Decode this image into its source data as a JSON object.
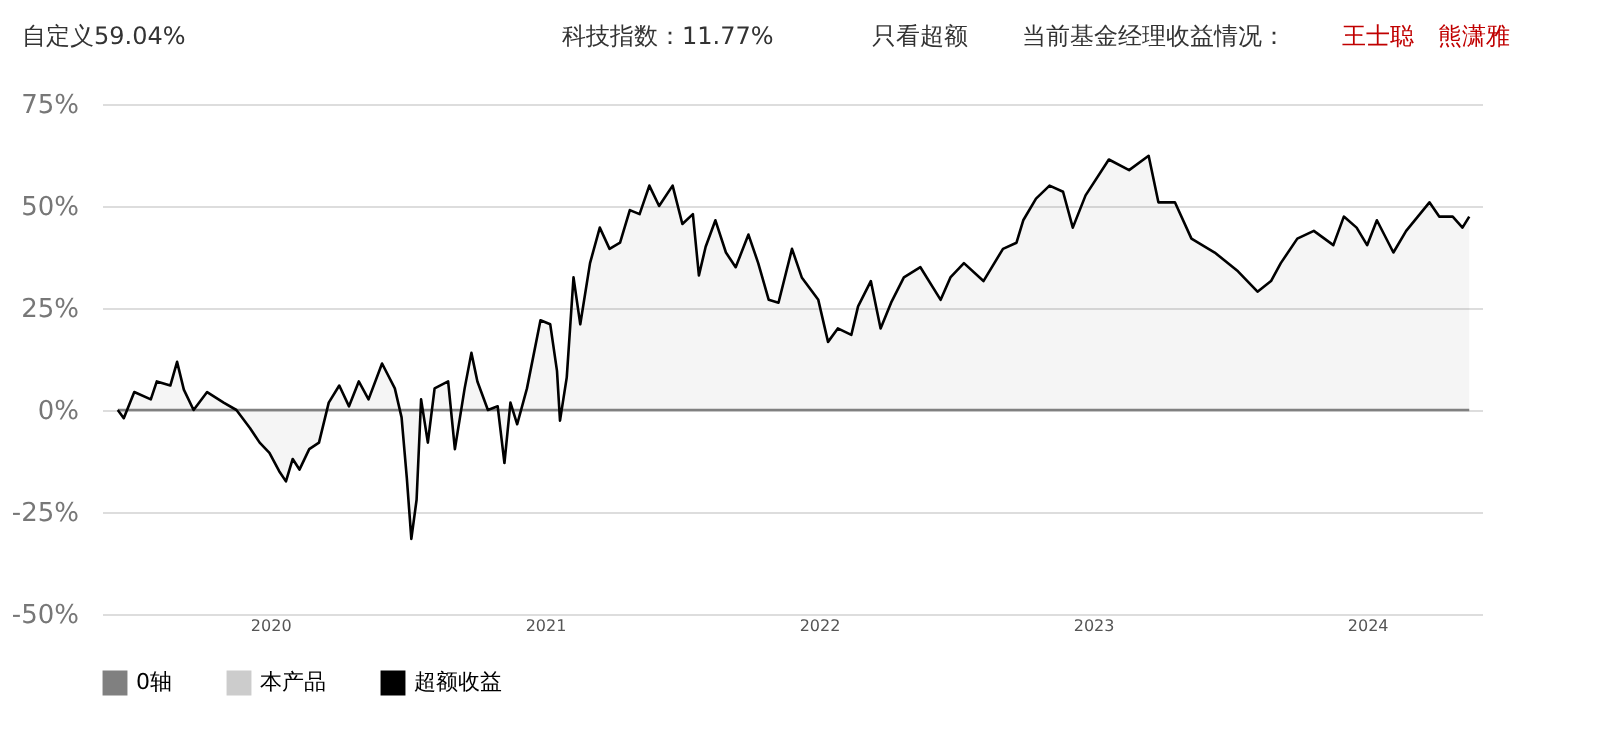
{
  "chart_data": {
    "type": "line",
    "annotations": [
      "自定义59.04%",
      "科技指数：11.77%",
      "只看超额",
      "当前基金经理收益情况：",
      "王士聪",
      "熊潇雅"
    ],
    "xlim": [
      "2019-05-22",
      "2024-06-02"
    ],
    "xticks": [
      {
        "value": "2020-01-01",
        "label": "2020"
      },
      {
        "value": "2021-01-01",
        "label": "2021"
      },
      {
        "value": "2022-01-01",
        "label": "2022"
      },
      {
        "value": "2023-01-01",
        "label": "2023"
      },
      {
        "value": "2024-01-01",
        "label": "2024"
      }
    ],
    "ylim": [
      -50,
      75
    ],
    "yticks": [
      {
        "value": -50,
        "label": "-50%"
      },
      {
        "value": -25,
        "label": "-25%"
      },
      {
        "value": 0,
        "label": "0%"
      },
      {
        "value": 25,
        "label": "25%"
      },
      {
        "value": 50,
        "label": "50%"
      },
      {
        "value": 75,
        "label": "75%"
      }
    ],
    "grid": "y",
    "legend": "bottom",
    "series": [
      {
        "name": "0轴",
        "color": "#808080",
        "x": [
          "2019-06-12",
          "2024-05-16"
        ],
        "values": [
          0,
          0
        ]
      },
      {
        "name": "本产品",
        "color": "#cccccc"
      },
      {
        "name": "超额收益",
        "type": "area",
        "color": "#000000",
        "x": [
          "2019-06-12",
          "2019-06-20",
          "2019-07-04",
          "2019-07-26",
          "2019-08-03",
          "2019-08-21",
          "2019-08-30",
          "2019-09-08",
          "2019-09-21",
          "2019-10-09",
          "2019-10-31",
          "2019-11-17",
          "2019-12-05",
          "2019-12-18",
          "2019-12-31",
          "2020-01-13",
          "2020-01-22",
          "2020-01-31",
          "2020-02-09",
          "2020-02-22",
          "2020-03-06",
          "2020-03-19",
          "2020-04-02",
          "2020-04-15",
          "2020-04-28",
          "2020-05-11",
          "2020-05-29",
          "2020-06-15",
          "2020-06-24",
          "2020-07-01",
          "2020-07-07",
          "2020-07-14",
          "2020-07-20",
          "2020-07-29",
          "2020-08-07",
          "2020-08-25",
          "2020-09-03",
          "2020-09-16",
          "2020-09-25",
          "2020-10-03",
          "2020-10-17",
          "2020-10-30",
          "2020-11-08",
          "2020-11-16",
          "2020-11-25",
          "2020-12-08",
          "2020-12-26",
          "2021-01-08",
          "2021-01-17",
          "2021-01-21",
          "2021-01-30",
          "2021-02-08",
          "2021-02-17",
          "2021-03-02",
          "2021-03-15",
          "2021-03-28",
          "2021-04-11",
          "2021-04-24",
          "2021-05-07",
          "2021-05-20",
          "2021-06-02",
          "2021-06-20",
          "2021-07-03",
          "2021-07-17",
          "2021-07-25",
          "2021-08-03",
          "2021-08-16",
          "2021-08-30",
          "2021-09-12",
          "2021-09-29",
          "2021-10-12",
          "2021-10-26",
          "2021-11-08",
          "2021-11-26",
          "2021-12-09",
          "2021-12-31",
          "2022-01-13",
          "2022-01-26",
          "2022-02-13",
          "2022-02-22",
          "2022-03-11",
          "2022-03-24",
          "2022-04-07",
          "2022-04-24",
          "2022-05-16",
          "2022-06-12",
          "2022-06-25",
          "2022-07-13",
          "2022-08-08",
          "2022-09-03",
          "2022-09-21",
          "2022-09-30",
          "2022-10-17",
          "2022-11-04",
          "2022-11-22",
          "2022-12-05",
          "2022-12-22",
          "2023-01-22",
          "2023-02-18",
          "2023-03-16",
          "2023-03-29",
          "2023-04-20",
          "2023-05-12",
          "2023-06-12",
          "2023-07-13",
          "2023-08-08",
          "2023-08-26",
          "2023-09-08",
          "2023-09-30",
          "2023-10-22",
          "2023-11-17",
          "2023-12-01",
          "2023-12-18",
          "2024-01-01",
          "2024-01-14",
          "2024-02-05",
          "2024-02-22",
          "2024-03-24",
          "2024-04-06",
          "2024-04-24",
          "2024-05-07",
          "2024-05-16"
        ],
        "values": [
          0,
          -2,
          4.4,
          2.6,
          7,
          6,
          11.8,
          5,
          0,
          4.4,
          1.8,
          0,
          -4.4,
          -8,
          -10.5,
          -15,
          -17.5,
          -12,
          -14.6,
          -9.6,
          -8,
          1.8,
          6,
          0.9,
          7,
          2.6,
          11.4,
          5.3,
          -1.8,
          -16.7,
          -31.6,
          -22,
          2.6,
          -8,
          5.3,
          7,
          -9.6,
          5.3,
          14,
          7,
          0,
          0.9,
          -13,
          1.8,
          -3.5,
          5.3,
          22,
          21,
          9.6,
          -2.6,
          8,
          32.5,
          21,
          36,
          44.7,
          39.5,
          41,
          49,
          48,
          55,
          50,
          55,
          45.6,
          48,
          33,
          40,
          46.5,
          38.6,
          35,
          43,
          36,
          27,
          26.3,
          39.5,
          32.5,
          27,
          16.7,
          20,
          18.4,
          25.4,
          31.6,
          20,
          26.3,
          32.5,
          35,
          27,
          32.5,
          36,
          31.6,
          39.5,
          41,
          46.5,
          51.8,
          55,
          53.5,
          44.7,
          52.6,
          61.4,
          58.8,
          62.3,
          50.9,
          50.9,
          42,
          38.6,
          34,
          29,
          31.6,
          36,
          42,
          43.9,
          40.4,
          47.4,
          44.7,
          40.4,
          46.5,
          38.6,
          43.9,
          50.9,
          47.4,
          47.4,
          44.7,
          47.4
        ]
      }
    ]
  }
}
